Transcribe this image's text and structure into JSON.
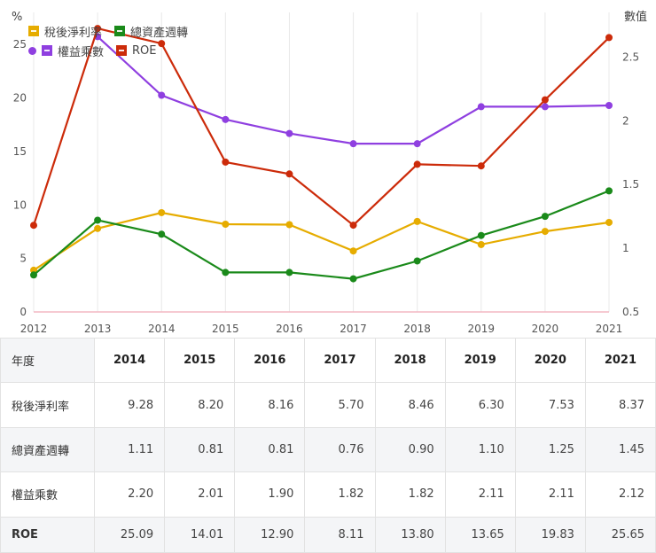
{
  "chart_data": {
    "type": "line",
    "x": [
      2012,
      2013,
      2014,
      2015,
      2016,
      2017,
      2018,
      2019,
      2020,
      2021
    ],
    "left_axis_label": "%",
    "right_axis_label": "數值",
    "left_ylim": [
      0,
      28
    ],
    "left_ticks": [
      0,
      5,
      10,
      15,
      20,
      25
    ],
    "right_ylim": [
      0.5,
      2.85
    ],
    "right_ticks": [
      "0.5",
      "1",
      "1.5",
      "2",
      "2.5"
    ],
    "grid": "vertical",
    "legend_position": "top-left",
    "series": [
      {
        "name": "稅後淨利率",
        "axis": "left",
        "color": "#e6ac00",
        "values": [
          3.9,
          7.8,
          9.28,
          8.2,
          8.16,
          5.7,
          8.46,
          6.3,
          7.53,
          8.37
        ]
      },
      {
        "name": "總資產週轉",
        "axis": "right",
        "color": "#1a8a1a",
        "values": [
          0.79,
          1.22,
          1.11,
          0.81,
          0.81,
          0.76,
          0.9,
          1.1,
          1.25,
          1.45
        ]
      },
      {
        "name": "權益乘數",
        "axis": "right",
        "color": "#8f3fe0",
        "values": [
          null,
          2.66,
          2.2,
          2.01,
          1.9,
          1.82,
          1.82,
          2.11,
          2.11,
          2.12
        ]
      },
      {
        "name": "ROE",
        "axis": "left",
        "color": "#cc2b0a",
        "values": [
          8.1,
          26.5,
          25.09,
          14.01,
          12.9,
          8.11,
          13.8,
          13.65,
          19.83,
          25.65
        ]
      }
    ]
  },
  "table": {
    "corner": "年度",
    "years": [
      "2014",
      "2015",
      "2016",
      "2017",
      "2018",
      "2019",
      "2020",
      "2021"
    ],
    "rows": [
      {
        "label": "稅後淨利率",
        "values": [
          "9.28",
          "8.20",
          "8.16",
          "5.70",
          "8.46",
          "6.30",
          "7.53",
          "8.37"
        ]
      },
      {
        "label": "總資產週轉",
        "values": [
          "1.11",
          "0.81",
          "0.81",
          "0.76",
          "0.90",
          "1.10",
          "1.25",
          "1.45"
        ]
      },
      {
        "label": "權益乘數",
        "values": [
          "2.20",
          "2.01",
          "1.90",
          "1.82",
          "1.82",
          "2.11",
          "2.11",
          "2.12"
        ]
      },
      {
        "label": "ROE",
        "values": [
          "25.09",
          "14.01",
          "12.90",
          "8.11",
          "13.80",
          "13.65",
          "19.83",
          "25.65"
        ]
      }
    ]
  }
}
